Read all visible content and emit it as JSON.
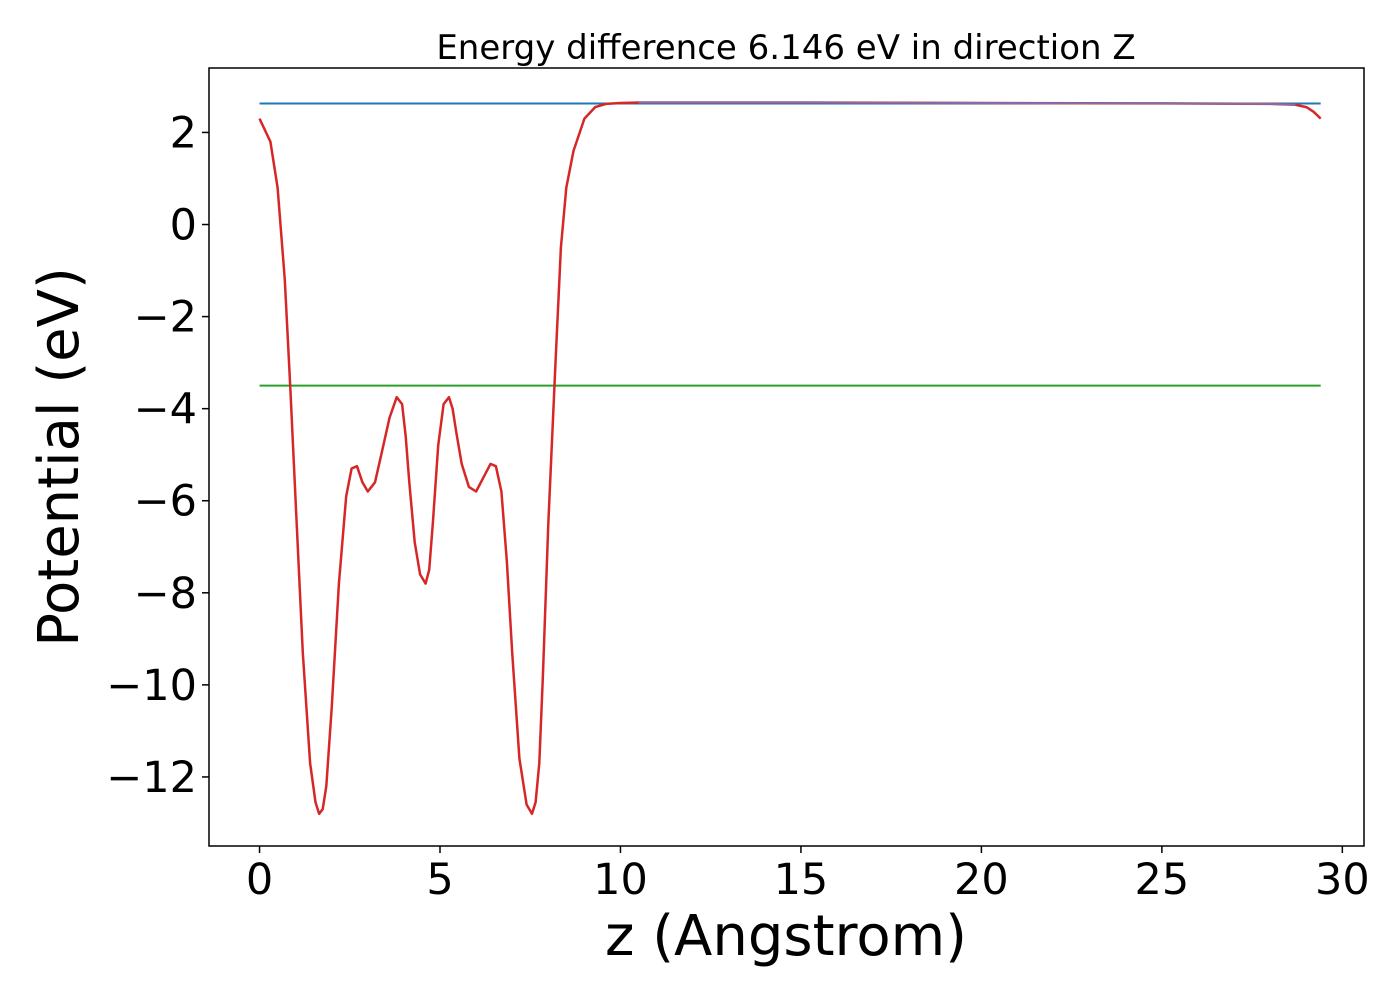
{
  "chart_data": {
    "type": "line",
    "title": "Energy difference 6.146 eV in direction Z",
    "xlabel": "z (Angstrom)",
    "ylabel": "Potential (eV)",
    "xlim": [
      -1.4,
      30.6
    ],
    "ylim": [
      -13.5,
      3.4
    ],
    "xticks": [
      0,
      5,
      10,
      15,
      20,
      25,
      30
    ],
    "yticks": [
      -12,
      -10,
      -8,
      -6,
      -4,
      -2,
      0,
      2
    ],
    "grid": false,
    "colors": {
      "potential": "#d62728",
      "vacuum_level": "#1f77b4",
      "fermi_level": "#2ca02c",
      "overlap": "#7f6faf"
    },
    "series": [
      {
        "kind": "hline",
        "x": [
          0,
          29.4
        ],
        "y": 2.63
      },
      {
        "kind": "hline",
        "x": [
          0,
          29.4
        ],
        "y": -3.5
      },
      {
        "kind": "curve",
        "x": [
          0,
          0.3,
          0.5,
          0.7,
          0.85,
          1.0,
          1.2,
          1.4,
          1.55,
          1.65,
          1.75,
          1.85,
          2.0,
          2.2,
          2.4,
          2.55,
          2.7,
          2.85,
          3.0,
          3.2,
          3.4,
          3.6,
          3.8,
          3.95,
          4.05,
          4.15,
          4.3,
          4.45,
          4.6,
          4.7,
          4.8,
          4.95,
          5.1,
          5.25,
          5.35,
          5.45,
          5.6,
          5.8,
          6.0,
          6.2,
          6.4,
          6.55,
          6.7,
          6.85,
          7.0,
          7.2,
          7.4,
          7.55,
          7.65,
          7.75,
          7.85,
          8.0,
          8.2,
          8.35,
          8.5,
          8.7,
          9.0,
          9.3,
          9.6,
          10.0,
          10.5,
          11.0,
          15.0,
          20.0,
          25.0,
          28.0,
          28.7,
          29.0,
          29.2,
          29.4
        ],
        "y": [
          2.3,
          1.8,
          0.8,
          -1.2,
          -3.5,
          -6.0,
          -9.3,
          -11.7,
          -12.55,
          -12.8,
          -12.7,
          -12.2,
          -10.5,
          -7.8,
          -5.9,
          -5.3,
          -5.25,
          -5.6,
          -5.8,
          -5.6,
          -4.9,
          -4.2,
          -3.75,
          -3.9,
          -4.6,
          -5.6,
          -6.9,
          -7.6,
          -7.8,
          -7.5,
          -6.5,
          -4.8,
          -3.9,
          -3.75,
          -4.0,
          -4.5,
          -5.2,
          -5.7,
          -5.8,
          -5.5,
          -5.2,
          -5.25,
          -5.8,
          -7.3,
          -9.3,
          -11.6,
          -12.6,
          -12.8,
          -12.55,
          -11.7,
          -9.8,
          -6.5,
          -3.0,
          -0.5,
          0.8,
          1.6,
          2.3,
          2.55,
          2.62,
          2.64,
          2.65,
          2.65,
          2.65,
          2.64,
          2.63,
          2.62,
          2.6,
          2.55,
          2.45,
          2.3
        ]
      }
    ]
  }
}
